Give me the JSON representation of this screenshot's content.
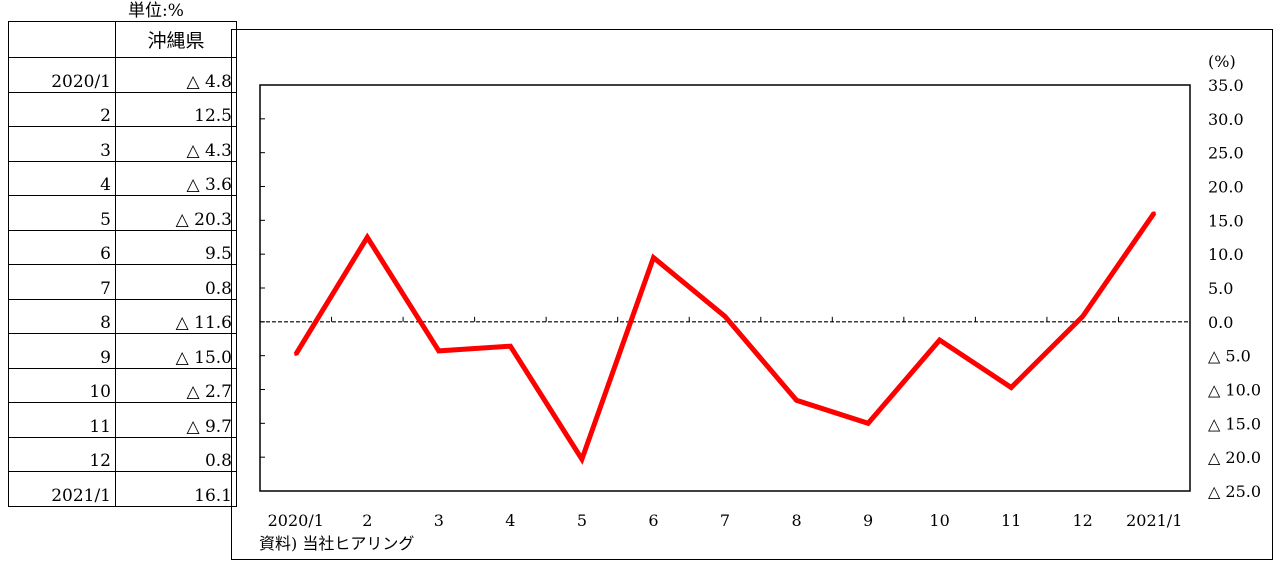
{
  "table": {
    "unit_label": "単位:%",
    "header": [
      "",
      "沖縄県"
    ],
    "rows": [
      {
        "month": "2020/1",
        "value": "△ 4.8"
      },
      {
        "month": "2",
        "value": "12.5"
      },
      {
        "month": "3",
        "value": "△ 4.3"
      },
      {
        "month": "4",
        "value": "△ 3.6"
      },
      {
        "month": "5",
        "value": "△ 20.3"
      },
      {
        "month": "6",
        "value": "9.5"
      },
      {
        "month": "7",
        "value": "0.8"
      },
      {
        "month": "8",
        "value": "△ 11.6"
      },
      {
        "month": "9",
        "value": "△ 15.0"
      },
      {
        "month": "10",
        "value": "△ 2.7"
      },
      {
        "month": "11",
        "value": "△ 9.7"
      },
      {
        "month": "12",
        "value": "0.8"
      },
      {
        "month": "2021/1",
        "value": "16.1"
      }
    ]
  },
  "chart_data": {
    "type": "line",
    "categories": [
      "2020/1",
      "2",
      "3",
      "4",
      "5",
      "6",
      "7",
      "8",
      "9",
      "10",
      "11",
      "12",
      "2021/1"
    ],
    "series": [
      {
        "values": [
          -4.8,
          12.5,
          -4.3,
          -3.6,
          -20.3,
          9.5,
          0.8,
          -11.6,
          -15.0,
          -2.7,
          -9.7,
          0.8,
          16.1
        ],
        "color": "#ff0000"
      }
    ],
    "y_unit_label": "(%)",
    "ylim": [
      -25,
      35
    ],
    "y_ticks": [
      35,
      30,
      25,
      20,
      15,
      10,
      5,
      0,
      -5,
      -10,
      -15,
      -20,
      -25
    ],
    "y_tick_labels": [
      "35.0",
      "30.0",
      "25.0",
      "20.0",
      "15.0",
      "10.0",
      "5.0",
      "0.0",
      "△ 5.0",
      "△ 10.0",
      "△ 15.0",
      "△ 20.0",
      "△ 25.0"
    ],
    "zero_line": "dashed",
    "grid": false,
    "legend": "none",
    "source_note": "資料) 当社ヒアリング"
  }
}
